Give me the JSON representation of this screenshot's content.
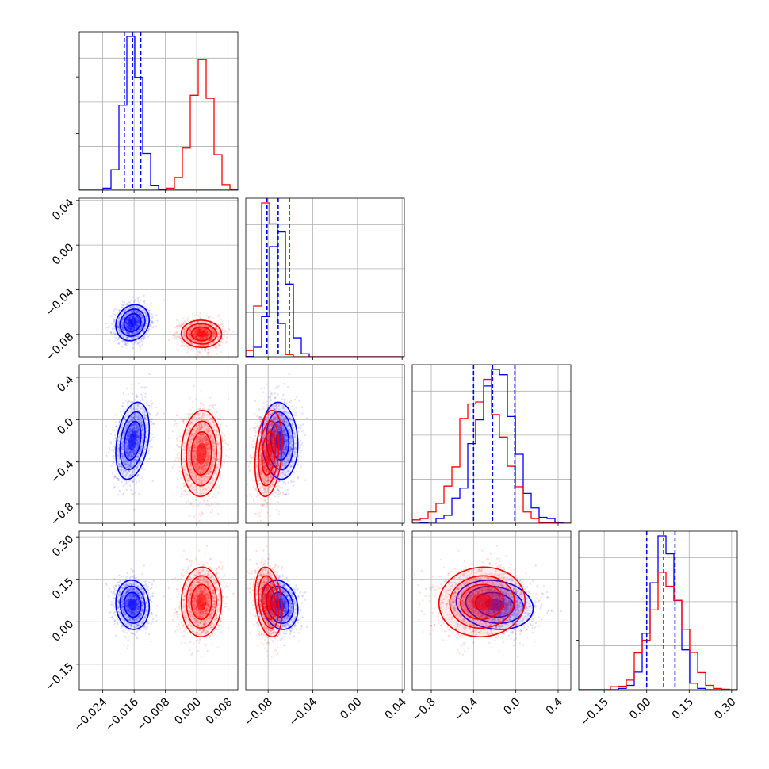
{
  "chart_data": {
    "type": "corner",
    "grid": true,
    "legend": "none",
    "colors": {
      "blue": "#0000ff",
      "red": "#ff0000"
    },
    "series": [
      {
        "color": "#0000ff",
        "mean": [
          -0.0164,
          -0.0695,
          -0.2,
          0.06
        ],
        "sd": [
          0.0022,
          0.008,
          0.18,
          0.045
        ],
        "quantile_lines": true
      },
      {
        "color": "#ff0000",
        "mean": [
          0.0012,
          -0.0795,
          -0.32,
          0.07
        ],
        "sd": [
          0.0025,
          0.006,
          0.2,
          0.06
        ]
      }
    ],
    "params": [
      {
        "lim": [
          -0.03,
          0.0105
        ],
        "ticks": [
          -0.024,
          -0.016,
          -0.008,
          0.0,
          0.008
        ],
        "tick_labels": [
          "−0.024",
          "−0.016",
          "−0.008",
          "0.000",
          "0.008"
        ]
      },
      {
        "lim": [
          -0.1,
          0.042
        ],
        "ticks": [
          -0.08,
          -0.04,
          0.0,
          0.04
        ],
        "tick_labels": [
          "−0.08",
          "−0.04",
          "0.00",
          "0.04"
        ]
      },
      {
        "lim": [
          -0.98,
          0.52
        ],
        "ticks": [
          -0.8,
          -0.4,
          0.0,
          0.4
        ],
        "tick_labels": [
          "−0.8",
          "−0.4",
          "0.0",
          "0.4"
        ]
      },
      {
        "lim": [
          -0.24,
          0.32
        ],
        "ticks": [
          -0.15,
          0.0,
          0.15,
          0.3
        ],
        "tick_labels": [
          "−0.15",
          "0.00",
          "0.15",
          "0.30"
        ]
      }
    ],
    "quantiles": [
      [
        -0.0185,
        -0.0164,
        -0.0143
      ],
      [
        -0.081,
        -0.071,
        -0.061
      ],
      [
        -0.4,
        -0.22,
        -0.01
      ],
      [
        0.0,
        0.06,
        0.1
      ]
    ]
  }
}
